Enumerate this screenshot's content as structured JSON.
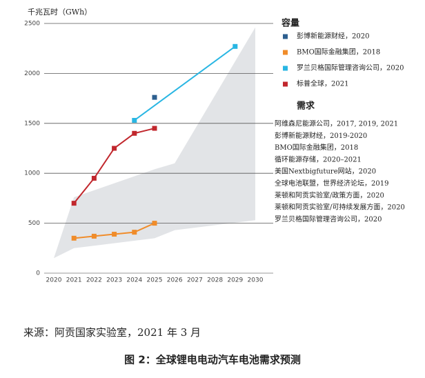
{
  "chart_data": {
    "type": "line",
    "y_label": "千兆瓦时（GWh）",
    "xlim": [
      2020,
      2030
    ],
    "xticks": [
      2020,
      2021,
      2022,
      2023,
      2024,
      2025,
      2026,
      2027,
      2028,
      2029,
      2030
    ],
    "ylim": [
      0,
      2500
    ],
    "yticks": [
      0,
      500,
      1000,
      1500,
      2000,
      2500
    ],
    "grid": true,
    "capacity_header": "容量",
    "series": [
      {
        "name": "彭博新能源财经，2020",
        "color": "#2d5f8f",
        "x": [
          2025
        ],
        "values": [
          1760
        ]
      },
      {
        "name": "BMO国际金融集团，2018",
        "color": "#f08c2a",
        "x": [
          2021,
          2022,
          2023,
          2024,
          2025
        ],
        "values": [
          350,
          370,
          390,
          410,
          500
        ]
      },
      {
        "name": "罗兰贝格国际管理咨询公司，2020",
        "color": "#29b6e3",
        "x": [
          2024,
          2029
        ],
        "values": [
          1530,
          2270
        ]
      },
      {
        "name": "标普全球，2021",
        "color": "#c1272d",
        "x": [
          2021,
          2022,
          2023,
          2024,
          2025
        ],
        "values": [
          700,
          950,
          1250,
          1400,
          1450
        ]
      }
    ],
    "demand_header": "需求",
    "demand_band": {
      "color": "#e2e4e7",
      "x": [
        2020,
        2021,
        2025,
        2026,
        2030
      ],
      "upper": [
        150,
        760,
        1040,
        1100,
        2460
      ],
      "lower": [
        150,
        250,
        350,
        430,
        530
      ]
    },
    "demand_sources": [
      "阿维森尼能源公司，2017, 2019, 2021",
      "彭博新能源财经，2019-2020",
      "BMO国际金融集团，2018",
      "循环能源存储，2020–2021",
      "美国Nextbigfuture网站，2020",
      "全球电池联盟，世界经济论坛，2019",
      "莱顿和阿贡实验室/政策方面，2020",
      "莱顿和阿贡实验室/可持续发展方面，2020",
      "罗兰贝格国际管理咨询公司，2020"
    ],
    "source": "来源：阿贡国家实验室，2021 年 3 月",
    "caption": "图 2：全球锂电电动汽车电池需求预测"
  }
}
